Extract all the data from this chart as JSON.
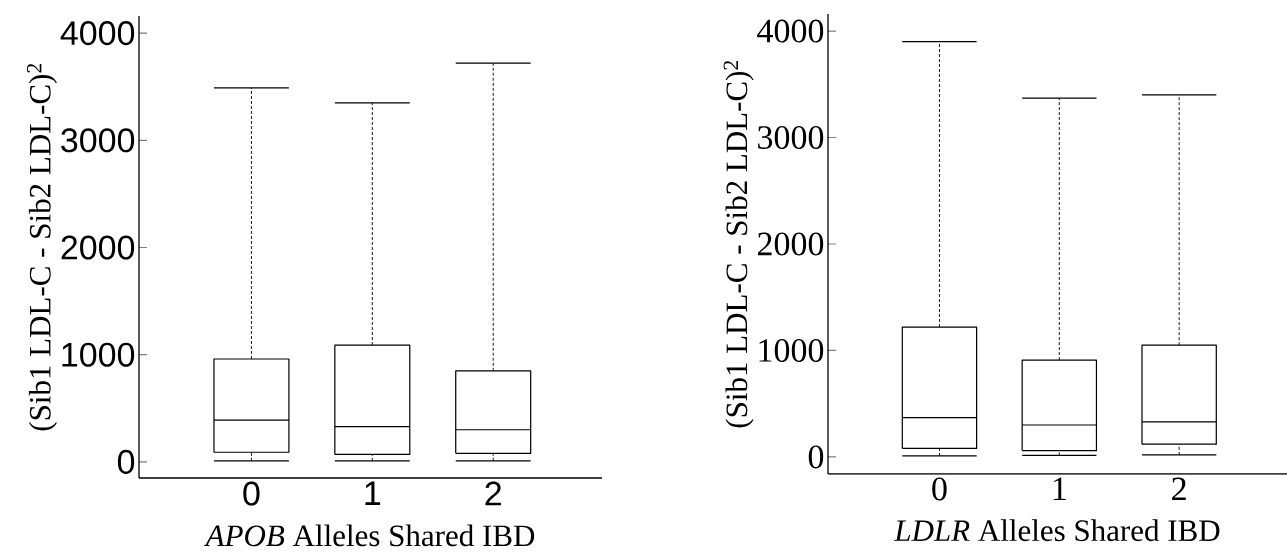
{
  "chart_data": [
    {
      "type": "box",
      "xlabel": "*APOB* Alleles Shared IBD",
      "ylabel": "(Sib1 LDL-C - Sib2 LDL-C)$^{2}$",
      "categories": [
        "0",
        "1",
        "2"
      ],
      "boxes": [
        {
          "low": 10,
          "q1": 90,
          "median": 390,
          "q3": 960,
          "high": 3490
        },
        {
          "low": 10,
          "q1": 70,
          "median": 330,
          "q3": 1090,
          "high": 3350
        },
        {
          "low": 10,
          "q1": 80,
          "median": 300,
          "q3": 850,
          "high": 3720
        }
      ],
      "ylim": [
        -150,
        4160
      ],
      "yticks": [
        0,
        1000,
        2000,
        3000,
        4000
      ]
    },
    {
      "type": "box",
      "xlabel": "*LDLR* Alleles Shared IBD",
      "ylabel": "(Sib1 LDL-C - Sib2 LDL-C)$^{2}$",
      "categories": [
        "0",
        "1",
        "2"
      ],
      "boxes": [
        {
          "low": 10,
          "q1": 80,
          "median": 370,
          "q3": 1220,
          "high": 3900
        },
        {
          "low": 15,
          "q1": 60,
          "median": 300,
          "q3": 910,
          "high": 3370
        },
        {
          "low": 20,
          "q1": 120,
          "median": 330,
          "q3": 1050,
          "high": 3400
        }
      ],
      "ylim": [
        -160,
        4160
      ],
      "yticks": [
        0,
        1000,
        2000,
        3000,
        4000
      ]
    }
  ]
}
